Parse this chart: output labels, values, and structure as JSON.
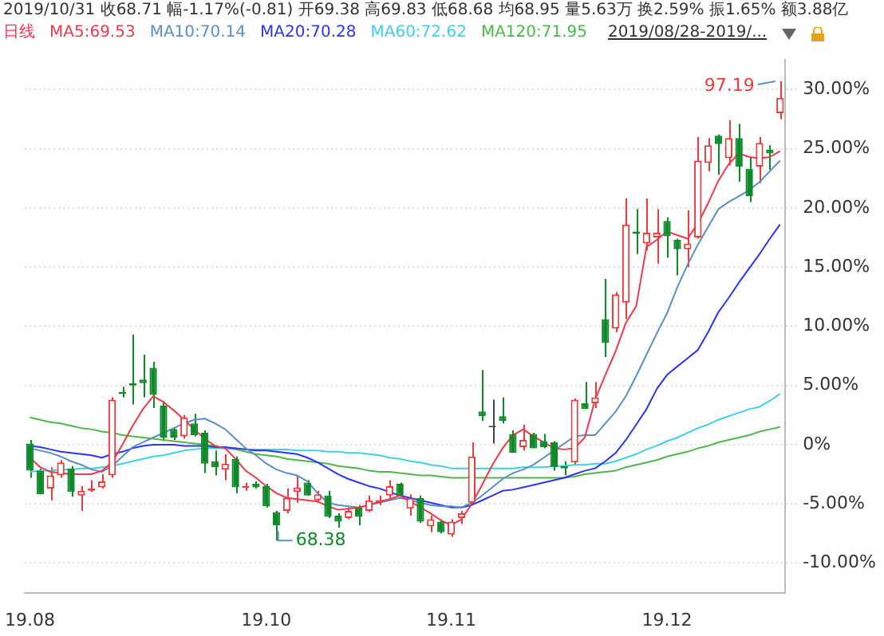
{
  "chart_data": {
    "type": "candlestick",
    "title": "2019/10/31 收68.71 幅-1.17%(-0.81) 开69.38 高69.83 低68.68 均68.95 量5.63万 换2.59% 振1.65% 额3.88亿",
    "legend_title": "日线",
    "legend": "top left",
    "grid": "y",
    "categories": [
      "19.08",
      null,
      null,
      null,
      null,
      null,
      null,
      null,
      null,
      null,
      null,
      null,
      null,
      null,
      null,
      null,
      null,
      null,
      null,
      null,
      null,
      null,
      null,
      "19.10",
      null,
      null,
      null,
      null,
      null,
      null,
      null,
      null,
      null,
      null,
      null,
      null,
      null,
      null,
      null,
      null,
      null,
      "19.11",
      null,
      null,
      null,
      null,
      null,
      null,
      null,
      null,
      null,
      null,
      null,
      null,
      null,
      null,
      null,
      null,
      null,
      null,
      null,
      null,
      "19.12",
      null,
      null,
      null,
      null,
      null,
      null,
      null,
      null,
      null,
      null,
      null
    ],
    "ohlc": [
      [
        0.1,
        0.4,
        -2.8,
        -2.2
      ],
      [
        -2.2,
        -2.0,
        -4.2,
        -4.2
      ],
      [
        -3.7,
        -1.9,
        -4.7,
        -2.6
      ],
      [
        -2.6,
        -1.3,
        -2.8,
        -1.5
      ],
      [
        -2.0,
        -1.8,
        -4.4,
        -4.0
      ],
      [
        -4.3,
        -3.5,
        -5.6,
        -3.9
      ],
      [
        -3.9,
        -3.0,
        -4.0,
        -3.7
      ],
      [
        -3.6,
        -2.5,
        -3.7,
        -3.1
      ],
      [
        -2.6,
        4.0,
        -2.8,
        3.8
      ],
      [
        4.4,
        4.9,
        4.0,
        4.3
      ],
      [
        5.2,
        9.3,
        3.4,
        5.0
      ],
      [
        5.5,
        7.6,
        4.0,
        5.2
      ],
      [
        6.5,
        7.0,
        3.1,
        4.2
      ],
      [
        3.3,
        3.7,
        0.3,
        0.6
      ],
      [
        1.3,
        1.4,
        0.4,
        0.6
      ],
      [
        0.7,
        2.5,
        0.5,
        2.3
      ],
      [
        1.8,
        2.6,
        0.7,
        0.8
      ],
      [
        1.0,
        1.2,
        -2.4,
        -1.6
      ],
      [
        -1.4,
        -0.5,
        -2.6,
        -1.9
      ],
      [
        -2.1,
        -0.8,
        -3.0,
        -1.6
      ],
      [
        -1.2,
        -1.0,
        -4.1,
        -3.6
      ],
      [
        -3.6,
        -3.2,
        -3.9,
        -3.5
      ],
      [
        -3.3,
        -3.1,
        -3.7,
        -3.6
      ],
      [
        -3.5,
        -3.3,
        -5.3,
        -5.2
      ],
      [
        -5.7,
        -5.6,
        -8.1,
        -6.8
      ],
      [
        -5.6,
        -3.7,
        -5.8,
        -4.5
      ],
      [
        -4.0,
        -2.6,
        -4.9,
        -3.6
      ],
      [
        -3.2,
        -3.0,
        -4.3,
        -4.3
      ],
      [
        -4.7,
        -3.9,
        -4.9,
        -4.2
      ],
      [
        -4.3,
        -3.9,
        -6.2,
        -6.1
      ],
      [
        -6.0,
        -5.8,
        -7.0,
        -6.5
      ],
      [
        -6.2,
        -5.3,
        -6.3,
        -5.6
      ],
      [
        -5.3,
        -5.1,
        -6.8,
        -6.1
      ],
      [
        -5.6,
        -4.3,
        -5.7,
        -4.7
      ],
      [
        -4.9,
        -4.3,
        -5.1,
        -4.7
      ],
      [
        -4.3,
        -3.0,
        -4.5,
        -3.5
      ],
      [
        -3.3,
        -3.2,
        -4.4,
        -4.3
      ],
      [
        -5.4,
        -4.2,
        -6.0,
        -4.5
      ],
      [
        -4.5,
        -4.3,
        -6.6,
        -6.5
      ],
      [
        -6.9,
        -6.0,
        -7.4,
        -6.3
      ],
      [
        -6.5,
        -6.3,
        -7.5,
        -7.4
      ],
      [
        -7.6,
        -6.3,
        -7.8,
        -6.5
      ],
      [
        -6.2,
        -5.6,
        -6.7,
        -5.8
      ],
      [
        -4.9,
        0.2,
        -5.0,
        -1.0
      ],
      [
        2.8,
        6.3,
        2.0,
        2.4
      ],
      [
        1.6,
        3.8,
        0.1,
        1.6
      ],
      [
        2.4,
        4.0,
        1.8,
        2.0
      ],
      [
        0.9,
        1.2,
        -0.7,
        -0.7
      ],
      [
        -0.2,
        1.7,
        -0.5,
        0.4
      ],
      [
        0.9,
        1.0,
        -0.3,
        -0.3
      ],
      [
        0.3,
        0.9,
        -0.3,
        -0.2
      ],
      [
        0.2,
        0.3,
        -2.2,
        -1.9
      ],
      [
        -1.8,
        -1.4,
        -2.6,
        -2.0
      ],
      [
        -1.5,
        3.9,
        -1.7,
        3.8
      ],
      [
        3.5,
        5.3,
        3.0,
        3.0
      ],
      [
        3.5,
        5.3,
        3.1,
        4.0
      ],
      [
        10.6,
        14.0,
        7.4,
        8.6
      ],
      [
        9.8,
        12.9,
        9.5,
        12.7
      ],
      [
        12.0,
        20.8,
        10.6,
        18.6
      ],
      [
        18.0,
        19.9,
        16.1,
        17.8
      ],
      [
        17.0,
        20.8,
        16.4,
        17.9
      ],
      [
        17.5,
        19.9,
        15.3,
        17.9
      ],
      [
        18.9,
        19.2,
        15.8,
        17.6
      ],
      [
        17.3,
        17.4,
        14.3,
        16.5
      ],
      [
        16.5,
        19.8,
        15.0,
        17.0
      ],
      [
        17.5,
        26.0,
        17.4,
        24.0
      ],
      [
        23.8,
        25.9,
        23.1,
        25.3
      ],
      [
        26.1,
        26.2,
        22.8,
        25.4
      ],
      [
        24.2,
        27.4,
        23.6,
        25.9
      ],
      [
        25.9,
        27.1,
        22.2,
        23.5
      ],
      [
        23.3,
        24.3,
        20.5,
        21.0
      ],
      [
        23.5,
        26.0,
        22.1,
        25.5
      ],
      [
        24.9,
        25.3,
        23.2,
        24.6
      ],
      [
        28.0,
        30.7,
        27.5,
        29.3
      ]
    ],
    "colors": [
      "#0e8a2a",
      "#0e8a2a",
      "#f0393c",
      "#f0393c",
      "#0e8a2a",
      "#f0393c",
      "#f0393c",
      "#f0393c",
      "#f0393c",
      "#0e8a2a",
      "#0e8a2a",
      "#0e8a2a",
      "#0e8a2a",
      "#0e8a2a",
      "#0e8a2a",
      "#f0393c",
      "#0e8a2a",
      "#0e8a2a",
      "#0e8a2a",
      "#f0393c",
      "#0e8a2a",
      "#f0393c",
      "#0e8a2a",
      "#0e8a2a",
      "#0e8a2a",
      "#f0393c",
      "#f0393c",
      "#0e8a2a",
      "#f0393c",
      "#0e8a2a",
      "#0e8a2a",
      "#f0393c",
      "#0e8a2a",
      "#f0393c",
      "#f0393c",
      "#f0393c",
      "#0e8a2a",
      "#f0393c",
      "#0e8a2a",
      "#f0393c",
      "#0e8a2a",
      "#f0393c",
      "#f0393c",
      "#f0393c",
      "#0e8a2a",
      "#444444",
      "#0e8a2a",
      "#0e8a2a",
      "#f0393c",
      "#0e8a2a",
      "#0e8a2a",
      "#0e8a2a",
      "#0e8a2a",
      "#f0393c",
      "#0e8a2a",
      "#f0393c",
      "#0e8a2a",
      "#f0393c",
      "#f0393c",
      "#0e8a2a",
      "#f0393c",
      "#f0393c",
      "#0e8a2a",
      "#0e8a2a",
      "#f0393c",
      "#f0393c",
      "#f0393c",
      "#0e8a2a",
      "#f0393c",
      "#0e8a2a",
      "#0e8a2a",
      "#f0393c",
      "#0e8a2a",
      "#f0393c"
    ],
    "series": [
      {
        "name": "MA5:69.53",
        "type": "line",
        "color": "#f0394a",
        "values": [
          -1.1,
          -1.9,
          -2.3,
          -2.4,
          -2.5,
          -2.5,
          -2.5,
          -2.2,
          -1.5,
          0.0,
          1.6,
          3.0,
          4.1,
          3.6,
          2.9,
          2.1,
          1.3,
          0.5,
          -0.1,
          -0.3,
          -1.2,
          -2.2,
          -2.8,
          -3.5,
          -4.1,
          -4.5,
          -4.6,
          -4.7,
          -4.8,
          -5.2,
          -5.5,
          -5.4,
          -5.3,
          -5.1,
          -4.8,
          -4.6,
          -4.3,
          -4.8,
          -5.3,
          -5.8,
          -6.4,
          -6.8,
          -6.3,
          -5.0,
          -3.4,
          -1.7,
          -0.3,
          0.8,
          1.3,
          0.7,
          0.2,
          -0.3,
          -0.4,
          -0.3,
          0.6,
          3.8,
          5.9,
          7.9,
          10.3,
          11.7,
          16.7,
          17.3,
          18.0,
          17.7,
          17.4,
          18.7,
          20.4,
          22.3,
          23.7,
          24.6,
          24.3,
          24.2,
          24.3,
          24.8
        ]
      },
      {
        "name": "MA10:70.14",
        "type": "line",
        "color": "#5b8fc4",
        "values": [
          -0.3,
          -0.5,
          -0.7,
          -1.0,
          -1.4,
          -1.7,
          -2.1,
          -2.3,
          -1.8,
          -1.0,
          -0.2,
          0.2,
          0.6,
          1.0,
          1.4,
          1.8,
          2.1,
          2.2,
          1.8,
          1.3,
          0.5,
          -0.3,
          -0.9,
          -1.6,
          -2.1,
          -2.4,
          -2.6,
          -3.1,
          -4.1,
          -4.9,
          -5.1,
          -5.2,
          -5.3,
          -5.1,
          -4.9,
          -4.7,
          -4.5,
          -4.7,
          -4.9,
          -5.1,
          -5.2,
          -5.2,
          -5.3,
          -4.9,
          -4.3,
          -3.6,
          -2.9,
          -2.4,
          -2.1,
          -1.7,
          -1.1,
          -0.5,
          0.1,
          0.7,
          0.8,
          0.8,
          1.8,
          2.8,
          4.1,
          5.8,
          7.6,
          9.4,
          11.1,
          13.3,
          15.2,
          16.9,
          18.4,
          19.9,
          20.5,
          21.0,
          21.5,
          22.2,
          23.1,
          24.0
        ]
      },
      {
        "name": "MA20:70.28",
        "type": "line",
        "color": "#2b35f0",
        "values": [
          -0.1,
          -0.2,
          -0.4,
          -0.6,
          -0.7,
          -0.8,
          -0.9,
          -1.1,
          -0.8,
          -0.6,
          -0.3,
          -0.1,
          0.0,
          0.0,
          0.0,
          -0.1,
          -0.1,
          -0.1,
          -0.2,
          -0.2,
          -0.3,
          -0.4,
          -0.5,
          -0.5,
          -0.6,
          -0.7,
          -0.8,
          -1.1,
          -1.5,
          -2.0,
          -2.5,
          -2.9,
          -3.2,
          -3.5,
          -3.7,
          -4.0,
          -4.3,
          -4.5,
          -4.7,
          -4.9,
          -5.1,
          -5.3,
          -5.3,
          -5.1,
          -4.7,
          -4.3,
          -3.9,
          -3.8,
          -3.6,
          -3.4,
          -3.2,
          -3.0,
          -2.8,
          -2.5,
          -2.2,
          -2.0,
          -1.4,
          -0.7,
          0.4,
          1.7,
          3.0,
          4.7,
          5.9,
          6.6,
          7.3,
          8.0,
          9.5,
          11.2,
          12.4,
          13.7,
          14.9,
          16.1,
          17.4,
          18.6
        ]
      },
      {
        "name": "MA60:72.62",
        "type": "line",
        "color": "#3fd0e8",
        "values": [
          -2.3,
          -2.2,
          -2.2,
          -2.1,
          -2.1,
          -2.0,
          -2.0,
          -1.9,
          -1.8,
          -1.6,
          -1.4,
          -1.2,
          -1.0,
          -0.9,
          -0.7,
          -0.5,
          -0.4,
          -0.3,
          -0.3,
          -0.3,
          -0.3,
          -0.4,
          -0.4,
          -0.4,
          -0.4,
          -0.4,
          -0.5,
          -0.5,
          -0.5,
          -0.6,
          -0.6,
          -0.7,
          -0.7,
          -0.8,
          -0.9,
          -1.1,
          -1.2,
          -1.4,
          -1.5,
          -1.7,
          -1.8,
          -2.0,
          -2.0,
          -2.0,
          -2.0,
          -2.0,
          -2.0,
          -2.0,
          -1.9,
          -1.9,
          -1.9,
          -1.8,
          -1.8,
          -1.7,
          -1.7,
          -1.6,
          -1.6,
          -1.4,
          -1.1,
          -0.8,
          -0.4,
          -0.1,
          0.3,
          0.6,
          1.0,
          1.4,
          1.7,
          2.1,
          2.4,
          2.7,
          3.0,
          3.2,
          3.7,
          4.3
        ]
      },
      {
        "name": "MA120:71.95",
        "type": "line",
        "color": "#4cb84c",
        "values": [
          2.3,
          2.1,
          1.9,
          1.8,
          1.6,
          1.4,
          1.3,
          1.1,
          1.0,
          0.8,
          0.7,
          0.6,
          0.5,
          0.4,
          0.3,
          0.2,
          0.1,
          0.0,
          -0.1,
          -0.3,
          -0.4,
          -0.6,
          -0.8,
          -0.9,
          -1.0,
          -1.2,
          -1.3,
          -1.4,
          -1.5,
          -1.6,
          -1.8,
          -1.9,
          -2.0,
          -2.2,
          -2.3,
          -2.3,
          -2.4,
          -2.5,
          -2.6,
          -2.6,
          -2.7,
          -2.8,
          -2.8,
          -2.8,
          -2.8,
          -2.8,
          -2.8,
          -2.8,
          -2.8,
          -2.8,
          -2.8,
          -2.8,
          -2.8,
          -2.7,
          -2.5,
          -2.4,
          -2.3,
          -2.2,
          -1.9,
          -1.7,
          -1.5,
          -1.3,
          -1.0,
          -0.8,
          -0.6,
          -0.3,
          -0.1,
          0.2,
          0.4,
          0.6,
          0.8,
          1.1,
          1.3,
          1.5
        ]
      }
    ],
    "ylim": [
      -12.5,
      32.5
    ],
    "yticks": [
      {
        "value": -10,
        "label": "-10.00%"
      },
      {
        "value": -5,
        "label": "-5.00%"
      },
      {
        "value": 0,
        "label": "0%"
      },
      {
        "value": 5,
        "label": "5.00%"
      },
      {
        "value": 10,
        "label": "10.00%"
      },
      {
        "value": 15,
        "label": "15.00%"
      },
      {
        "value": 20,
        "label": "20.00%"
      },
      {
        "value": 25,
        "label": "25.00%"
      },
      {
        "value": 30,
        "label": "30.00%"
      }
    ],
    "annotations": [
      "2019/08/28-2019/...",
      "97.19",
      "68.38"
    ]
  }
}
